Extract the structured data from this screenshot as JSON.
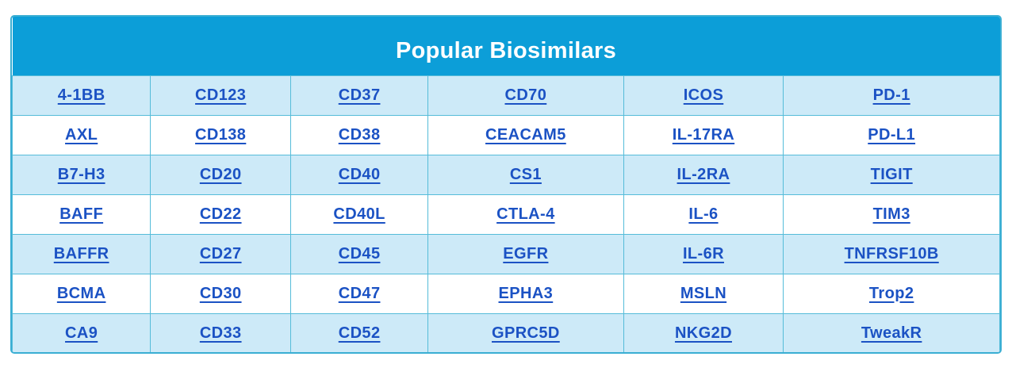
{
  "title": "Popular Biosimilars",
  "colors": {
    "header_bg": "#0c9ed8",
    "title_text": "#ffffff",
    "row_alt_bg": "#cdeaf8",
    "row_bg": "#ffffff",
    "border": "#55bcd9",
    "link": "#1b52c4"
  },
  "table": {
    "column_count": 6,
    "column_widths_pct": [
      14.0,
      14.2,
      13.9,
      19.8,
      16.2,
      21.9
    ],
    "rows": [
      [
        "4-1BB",
        "CD123",
        "CD37",
        "CD70",
        "ICOS",
        "PD-1"
      ],
      [
        "AXL",
        "CD138",
        "CD38",
        "CEACAM5",
        "IL-17RA",
        "PD-L1"
      ],
      [
        "B7-H3",
        "CD20",
        "CD40",
        "CS1",
        "IL-2RA",
        "TIGIT"
      ],
      [
        "BAFF",
        "CD22",
        "CD40L",
        "CTLA-4",
        "IL-6",
        "TIM3"
      ],
      [
        "BAFFR",
        "CD27",
        "CD45",
        "EGFR",
        "IL-6R",
        "TNFRSF10B"
      ],
      [
        "BCMA",
        "CD30",
        "CD47",
        "EPHA3",
        "MSLN",
        "Trop2"
      ],
      [
        "CA9",
        "CD33",
        "CD52",
        "GPRC5D",
        "NKG2D",
        "TweakR"
      ]
    ]
  }
}
